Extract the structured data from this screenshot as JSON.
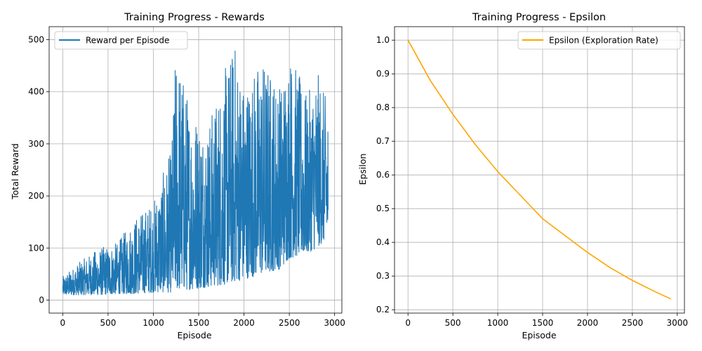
{
  "chart_data": [
    {
      "type": "line",
      "title": "Training Progress - Rewards",
      "xlabel": "Episode",
      "ylabel": "Total Reward",
      "xlim": [
        -150,
        3080
      ],
      "ylim": [
        -25,
        525
      ],
      "xticks": [
        0,
        500,
        1000,
        1500,
        2000,
        2500,
        3000
      ],
      "yticks": [
        0,
        100,
        200,
        300,
        400,
        500
      ],
      "grid": true,
      "legend_position": "top-left",
      "series": [
        {
          "name": "Reward per Episode",
          "color": "#1f77b4",
          "note_points": "noisy per-episode rewards; envelope below",
          "episodes": 2930,
          "envelope": {
            "x": [
              0,
              200,
              400,
              600,
              800,
              1000,
              1200,
              1250,
              1400,
              1600,
              1800,
              1900,
              2000,
              2200,
              2400,
              2500,
              2700,
              2800,
              2930
            ],
            "low": [
              10,
              10,
              10,
              12,
              12,
              15,
              15,
              18,
              20,
              25,
              30,
              35,
              40,
              50,
              60,
              80,
              90,
              100,
              120
            ],
            "high": [
              45,
              75,
              100,
              110,
              160,
              190,
              290,
              495,
              380,
              340,
              450,
              500,
              420,
              470,
              420,
              485,
              390,
              445,
              375
            ]
          }
        }
      ]
    },
    {
      "type": "line",
      "title": "Training Progress - Epsilon",
      "xlabel": "Episode",
      "ylabel": "Epsilon",
      "xlim": [
        -150,
        3080
      ],
      "ylim": [
        0.19,
        1.04
      ],
      "xticks": [
        0,
        500,
        1000,
        1500,
        2000,
        2500,
        3000
      ],
      "yticks": [
        0.2,
        0.3,
        0.4,
        0.5,
        0.6,
        0.7,
        0.8,
        0.9,
        1.0
      ],
      "ytick_labels": [
        "0.2",
        "0.3",
        "0.4",
        "0.5",
        "0.6",
        "0.7",
        "0.8",
        "0.9",
        "1.0"
      ],
      "grid": true,
      "legend_position": "top-right",
      "series": [
        {
          "name": "Epsilon (Exploration Rate)",
          "color": "#ffa500",
          "x": [
            0,
            250,
            500,
            750,
            1000,
            1250,
            1500,
            1750,
            2000,
            2250,
            2500,
            2750,
            2930
          ],
          "y": [
            1.0,
            0.88,
            0.78,
            0.69,
            0.61,
            0.54,
            0.47,
            0.42,
            0.37,
            0.325,
            0.287,
            0.254,
            0.232
          ]
        }
      ]
    }
  ]
}
